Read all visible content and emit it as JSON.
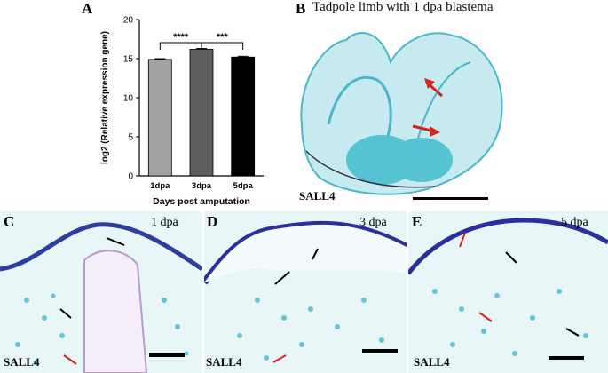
{
  "panels": {
    "a": {
      "letter": "A"
    },
    "b": {
      "letter": "B",
      "title": "Tadpole limb with 1 dpa blastema",
      "stain": "SALL4"
    },
    "c": {
      "letter": "C",
      "timepoint": "1 dpa",
      "stain": "SALL4"
    },
    "d": {
      "letter": "D",
      "timepoint": "3 dpa",
      "stain": "SALL4"
    },
    "e": {
      "letter": "E",
      "timepoint": "5 dpa",
      "stain": "SALL4"
    }
  },
  "chart_data": {
    "type": "bar",
    "categories": [
      "1dpa",
      "3dpa",
      "5dpa"
    ],
    "values": [
      14.9,
      16.2,
      15.2
    ],
    "errors": [
      0.1,
      0.1,
      0.1
    ],
    "colors": [
      "#a3a3a3",
      "#5e5e5e",
      "#000000"
    ],
    "xlabel": "Days post amputation",
    "ylabel": "log2 (Relative expression gene)",
    "ylim": [
      0,
      20
    ],
    "yticks": [
      0,
      5,
      10,
      15,
      20
    ],
    "significance": [
      {
        "from": "1dpa",
        "to": "3dpa",
        "label": "****"
      },
      {
        "from": "3dpa",
        "to": "5dpa",
        "label": "***"
      }
    ],
    "grid": false
  },
  "colors": {
    "stain_blue": "#5ec7d6",
    "tissue_purple": "#3a3aa8",
    "arrow_red": "#d9231d",
    "background": "#ffffff"
  }
}
